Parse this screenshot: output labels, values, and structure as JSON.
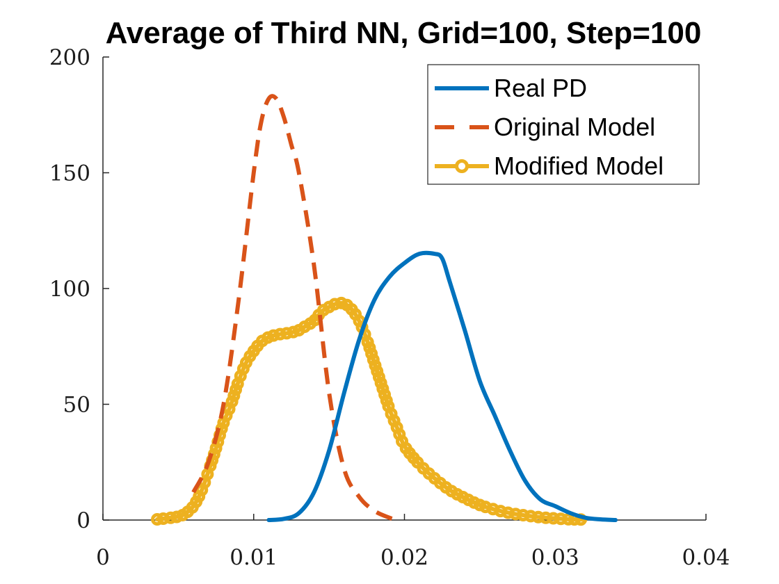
{
  "chart_data": {
    "type": "line",
    "title": "Average of Third NN, Grid=100, Step=100",
    "xlabel": "",
    "ylabel": "",
    "xlim": [
      0,
      0.04
    ],
    "ylim": [
      0,
      200
    ],
    "xticks": [
      "0",
      "0.01",
      "0.02",
      "0.03",
      "0.04"
    ],
    "yticks": [
      "0",
      "50",
      "100",
      "150",
      "200"
    ],
    "grid": false,
    "legend_position": "top-right",
    "series": [
      {
        "name": "Real PD",
        "color": "#0072BD",
        "style": "solid",
        "x": [
          0.011,
          0.012,
          0.013,
          0.014,
          0.015,
          0.016,
          0.017,
          0.018,
          0.019,
          0.02,
          0.021,
          0.022,
          0.0225,
          0.023,
          0.024,
          0.025,
          0.026,
          0.027,
          0.028,
          0.029,
          0.03,
          0.031,
          0.032,
          0.033,
          0.034
        ],
        "y": [
          0,
          0.5,
          3,
          12,
          30,
          55,
          78,
          95,
          105,
          111,
          115,
          115,
          113,
          103,
          82,
          60,
          45,
          30,
          17,
          9,
          6,
          3,
          1,
          0.3,
          0
        ]
      },
      {
        "name": "Original Model",
        "color": "#D95319",
        "style": "dashed",
        "x": [
          0.006,
          0.007,
          0.008,
          0.009,
          0.01,
          0.0105,
          0.011,
          0.0115,
          0.012,
          0.0125,
          0.013,
          0.014,
          0.015,
          0.016,
          0.017,
          0.018,
          0.019,
          0.0195
        ],
        "y": [
          12,
          25,
          50,
          95,
          150,
          172,
          182,
          182,
          174,
          162,
          150,
          110,
          55,
          22,
          10,
          4,
          1,
          0
        ]
      },
      {
        "name": "Modified Model",
        "color": "#EDB120",
        "style": "solid-circle-markers",
        "x": [
          0.0036,
          0.004,
          0.005,
          0.0055,
          0.006,
          0.0065,
          0.007,
          0.0075,
          0.008,
          0.0085,
          0.009,
          0.0095,
          0.01,
          0.0105,
          0.011,
          0.0115,
          0.012,
          0.0125,
          0.013,
          0.0135,
          0.014,
          0.0145,
          0.015,
          0.0155,
          0.016,
          0.0165,
          0.017,
          0.0175,
          0.018,
          0.0185,
          0.019,
          0.0195,
          0.02,
          0.021,
          0.022,
          0.023,
          0.024,
          0.025,
          0.026,
          0.027,
          0.028,
          0.029,
          0.03,
          0.031,
          0.032
        ],
        "y": [
          0.3,
          0.6,
          1.5,
          3,
          6,
          12,
          21,
          31,
          42,
          50,
          60,
          68,
          73,
          77,
          79,
          80,
          80.5,
          81,
          82,
          84,
          86,
          90,
          92,
          93.5,
          93.5,
          91,
          86,
          78,
          68,
          58,
          48,
          40,
          32,
          24,
          18,
          13,
          9.5,
          6.5,
          4.5,
          3,
          2,
          1.2,
          0.7,
          0.3,
          0.2
        ]
      }
    ]
  }
}
